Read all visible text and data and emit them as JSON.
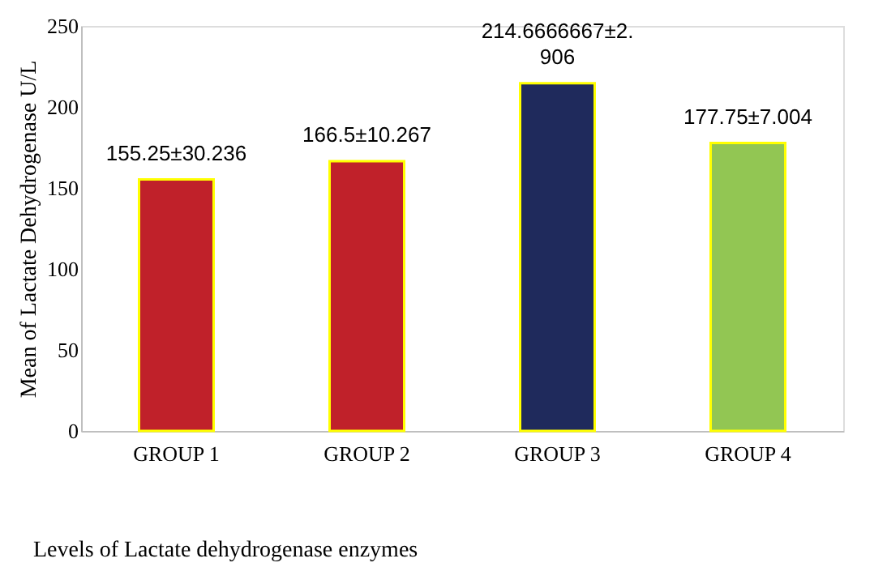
{
  "chart_data": {
    "type": "bar",
    "categories": [
      "GROUP 1",
      "GROUP 2",
      "GROUP 3",
      "GROUP 4"
    ],
    "values": [
      155.25,
      166.5,
      214.6666667,
      177.75
    ],
    "colors": [
      "#c0212a",
      "#c0212a",
      "#1f2a5c",
      "#92c653"
    ],
    "value_labels": [
      "155.25±30.236",
      "166.5±10.267",
      "214.6666667±2.906",
      "177.75±7.004"
    ],
    "xlabel": "Levels of Lactate dehydrogenase enzymes",
    "ylabel": "Mean of Lactate Dehydrogenase U/L",
    "ylim": [
      0,
      250
    ],
    "yticks": [
      0,
      50,
      100,
      150,
      200,
      250
    ],
    "grid": false
  }
}
